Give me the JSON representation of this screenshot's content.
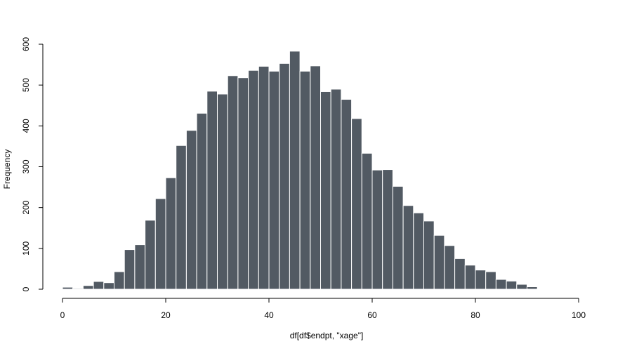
{
  "chart_data": {
    "type": "bar",
    "title": "",
    "xlabel": "df[df$endpt, \"xage\"]",
    "ylabel": "Frequency",
    "bin_width": 2,
    "x_start": 0,
    "counts": [
      5,
      2,
      9,
      19,
      16,
      43,
      97,
      109,
      169,
      222,
      273,
      352,
      389,
      431,
      485,
      478,
      523,
      518,
      536,
      546,
      534,
      553,
      583,
      534,
      547,
      484,
      490,
      465,
      418,
      333,
      292,
      293,
      252,
      205,
      187,
      167,
      132,
      107,
      75,
      59,
      47,
      43,
      24,
      20,
      12,
      6
    ],
    "xlim": [
      0,
      100
    ],
    "ylim": [
      0,
      600
    ],
    "x_ticks": [
      0,
      20,
      40,
      60,
      80,
      100
    ],
    "y_ticks": [
      0,
      100,
      200,
      300,
      400,
      500,
      600
    ],
    "bar_color": "#525a63",
    "grid": false,
    "legend": "none"
  }
}
